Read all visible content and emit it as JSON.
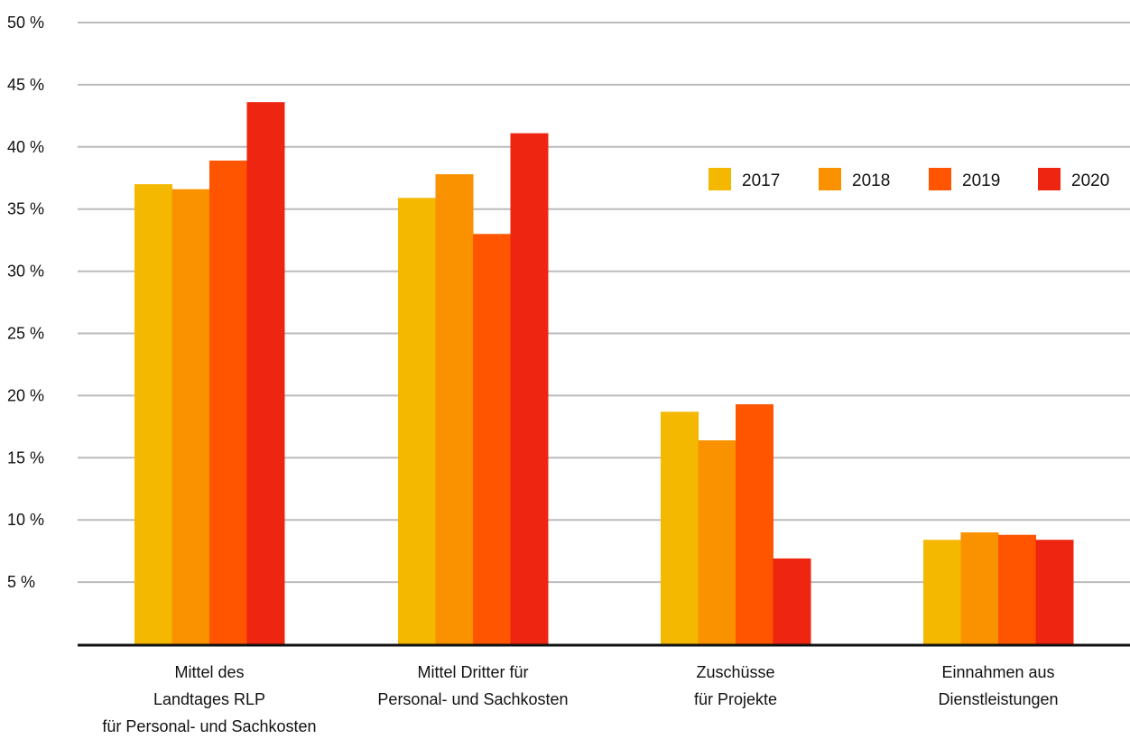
{
  "chart_data": {
    "type": "bar",
    "categories": [
      [
        "Mittel des",
        "Landtages RLP",
        "für Personal- und Sachkosten"
      ],
      [
        "Mittel Dritter für",
        "Personal- und Sachkosten"
      ],
      [
        "Zuschüsse",
        "für Projekte"
      ],
      [
        "Einnahmen aus",
        "Dienstleistungen"
      ]
    ],
    "series": [
      {
        "name": "2017",
        "color": "#F5B800",
        "values": [
          37.0,
          35.9,
          18.7,
          8.4
        ]
      },
      {
        "name": "2018",
        "color": "#FA9200",
        "values": [
          36.6,
          37.8,
          16.4,
          9.0
        ]
      },
      {
        "name": "2019",
        "color": "#FF5500",
        "values": [
          38.9,
          33.0,
          19.3,
          8.8
        ]
      },
      {
        "name": "2020",
        "color": "#EE2510",
        "values": [
          43.6,
          41.1,
          6.9,
          8.4
        ]
      }
    ],
    "y_ticks": [
      "5 %",
      "10 %",
      "15 %",
      "20 %",
      "25 %",
      "30 %",
      "35 %",
      "40 %",
      "45 %",
      "50 %"
    ],
    "y_tick_values": [
      5,
      10,
      15,
      20,
      25,
      30,
      35,
      40,
      45,
      50
    ],
    "ylim": [
      0,
      50
    ],
    "grid": true,
    "legend_position": "top-right",
    "title": "",
    "xlabel": "",
    "ylabel": "",
    "grid_color": "#BBBBBB",
    "axis_color": "#111111"
  }
}
